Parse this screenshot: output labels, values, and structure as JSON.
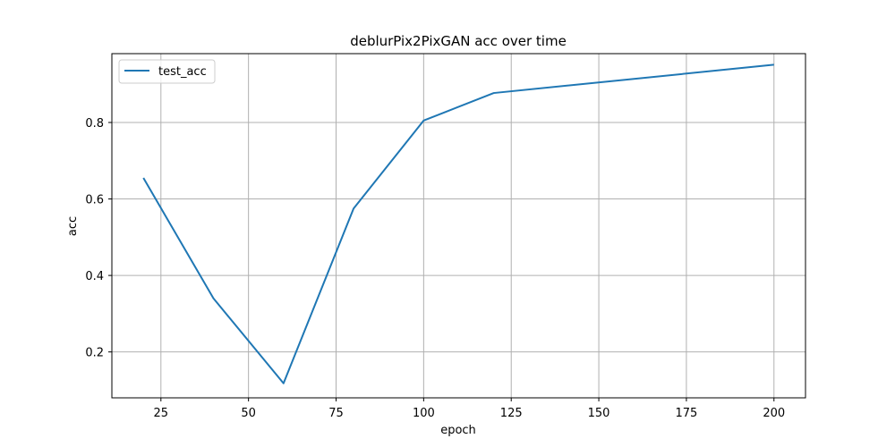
{
  "chart_data": {
    "type": "line",
    "title": "deblurPix2PixGAN acc over time",
    "xlabel": "epoch",
    "ylabel": "acc",
    "xlim": [
      11,
      209
    ],
    "ylim": [
      0.08,
      0.98
    ],
    "xticks": [
      25,
      50,
      75,
      100,
      125,
      150,
      175,
      200
    ],
    "yticks": [
      0.2,
      0.4,
      0.6,
      0.8
    ],
    "grid": true,
    "legend_position": "upper-left",
    "series": [
      {
        "name": "test_acc",
        "color": "#1f77b4",
        "x": [
          20,
          40,
          60,
          80,
          100,
          120,
          200
        ],
        "y": [
          0.655,
          0.34,
          0.118,
          0.575,
          0.805,
          0.877,
          0.951
        ]
      }
    ]
  }
}
